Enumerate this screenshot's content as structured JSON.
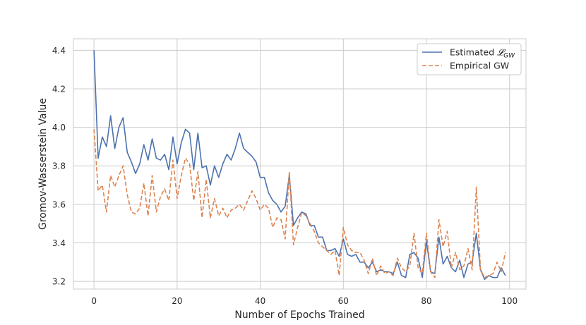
{
  "chart_data": {
    "type": "line",
    "xlabel": "Number of Epochs Trained",
    "ylabel": "Gromov-Wasserstein Value",
    "xlim": [
      -4.95,
      103.95
    ],
    "ylim": [
      3.16,
      4.46
    ],
    "xticks": [
      0,
      20,
      40,
      60,
      80,
      100
    ],
    "yticks": [
      3.2,
      3.4,
      3.6,
      3.8,
      4.0,
      4.2,
      4.4
    ],
    "xtick_labels": [
      "0",
      "20",
      "40",
      "60",
      "80",
      "100"
    ],
    "ytick_labels": [
      "3.2",
      "3.4",
      "3.6",
      "3.8",
      "4.0",
      "4.2",
      "4.4"
    ],
    "grid": true,
    "legend_position": "top-right",
    "series": [
      {
        "name": "Estimated 𝓛GW",
        "legend_main": "Estimated ",
        "legend_script": "𝓛",
        "legend_sub": "GW",
        "color": "#4c72b0",
        "style": "solid",
        "x": [
          0,
          1,
          2,
          3,
          4,
          5,
          6,
          7,
          8,
          9,
          10,
          11,
          12,
          13,
          14,
          15,
          16,
          17,
          18,
          19,
          20,
          21,
          22,
          23,
          24,
          25,
          26,
          27,
          28,
          29,
          30,
          31,
          32,
          33,
          34,
          35,
          36,
          37,
          38,
          39,
          40,
          41,
          42,
          43,
          44,
          45,
          46,
          47,
          48,
          49,
          50,
          51,
          52,
          53,
          54,
          55,
          56,
          57,
          58,
          59,
          60,
          61,
          62,
          63,
          64,
          65,
          66,
          67,
          68,
          69,
          70,
          71,
          72,
          73,
          74,
          75,
          76,
          77,
          78,
          79,
          80,
          81,
          82,
          83,
          84,
          85,
          86,
          87,
          88,
          89,
          90,
          91,
          92,
          93,
          94,
          95,
          96,
          97,
          98,
          99
        ],
        "y": [
          4.4,
          3.84,
          3.95,
          3.9,
          4.06,
          3.89,
          4.0,
          4.05,
          3.87,
          3.82,
          3.76,
          3.81,
          3.91,
          3.83,
          3.94,
          3.84,
          3.83,
          3.86,
          3.78,
          3.95,
          3.81,
          3.92,
          3.99,
          3.97,
          3.78,
          3.97,
          3.79,
          3.8,
          3.7,
          3.8,
          3.74,
          3.81,
          3.86,
          3.83,
          3.89,
          3.97,
          3.89,
          3.87,
          3.85,
          3.82,
          3.74,
          3.74,
          3.66,
          3.62,
          3.6,
          3.56,
          3.59,
          3.75,
          3.49,
          3.53,
          3.56,
          3.55,
          3.49,
          3.49,
          3.43,
          3.43,
          3.36,
          3.36,
          3.37,
          3.33,
          3.42,
          3.34,
          3.33,
          3.34,
          3.3,
          3.3,
          3.27,
          3.3,
          3.25,
          3.26,
          3.25,
          3.25,
          3.24,
          3.3,
          3.23,
          3.22,
          3.34,
          3.35,
          3.32,
          3.22,
          3.41,
          3.25,
          3.24,
          3.43,
          3.29,
          3.33,
          3.27,
          3.25,
          3.31,
          3.22,
          3.29,
          3.3,
          3.45,
          3.26,
          3.21,
          3.23,
          3.22,
          3.22,
          3.27,
          3.23
        ]
      },
      {
        "name": "Empirical GW",
        "legend_main": "Empirical GW",
        "legend_script": "",
        "legend_sub": "",
        "color": "#dd8452",
        "style": "dashed",
        "x": [
          0,
          1,
          2,
          3,
          4,
          5,
          6,
          7,
          8,
          9,
          10,
          11,
          12,
          13,
          14,
          15,
          16,
          17,
          18,
          19,
          20,
          21,
          22,
          23,
          24,
          25,
          26,
          27,
          28,
          29,
          30,
          31,
          32,
          33,
          34,
          35,
          36,
          37,
          38,
          39,
          40,
          41,
          42,
          43,
          44,
          45,
          46,
          47,
          48,
          49,
          50,
          51,
          52,
          53,
          54,
          55,
          56,
          57,
          58,
          59,
          60,
          61,
          62,
          63,
          64,
          65,
          66,
          67,
          68,
          69,
          70,
          71,
          72,
          73,
          74,
          75,
          76,
          77,
          78,
          79,
          80,
          81,
          82,
          83,
          84,
          85,
          86,
          87,
          88,
          89,
          90,
          91,
          92,
          93,
          94,
          95,
          96,
          97,
          98,
          99
        ],
        "y": [
          3.99,
          3.67,
          3.7,
          3.56,
          3.75,
          3.69,
          3.75,
          3.8,
          3.65,
          3.56,
          3.55,
          3.58,
          3.71,
          3.54,
          3.75,
          3.56,
          3.64,
          3.68,
          3.62,
          3.83,
          3.63,
          3.75,
          3.84,
          3.81,
          3.62,
          3.77,
          3.53,
          3.73,
          3.53,
          3.63,
          3.54,
          3.58,
          3.53,
          3.57,
          3.58,
          3.6,
          3.57,
          3.62,
          3.67,
          3.63,
          3.57,
          3.6,
          3.58,
          3.48,
          3.53,
          3.52,
          3.42,
          3.77,
          3.39,
          3.48,
          3.56,
          3.54,
          3.5,
          3.46,
          3.4,
          3.38,
          3.36,
          3.34,
          3.36,
          3.23,
          3.48,
          3.39,
          3.36,
          3.35,
          3.35,
          3.31,
          3.24,
          3.32,
          3.23,
          3.28,
          3.24,
          3.25,
          3.23,
          3.32,
          3.27,
          3.25,
          3.28,
          3.45,
          3.27,
          3.24,
          3.45,
          3.25,
          3.22,
          3.52,
          3.38,
          3.46,
          3.27,
          3.35,
          3.26,
          3.28,
          3.37,
          3.26,
          3.69,
          3.26,
          3.22,
          3.23,
          3.24,
          3.3,
          3.25,
          3.35
        ]
      }
    ]
  }
}
